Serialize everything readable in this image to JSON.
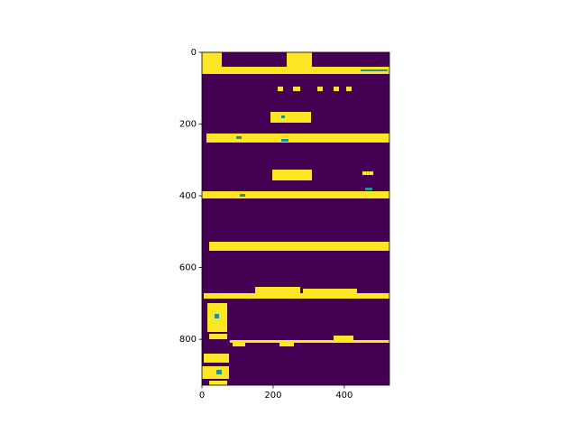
{
  "chart_data": {
    "type": "image",
    "xlim": [
      0,
      527
    ],
    "ylim": [
      928,
      0
    ],
    "xticks": [
      0,
      200,
      400
    ],
    "yticks": [
      0,
      200,
      400,
      600,
      800
    ]
  }
}
